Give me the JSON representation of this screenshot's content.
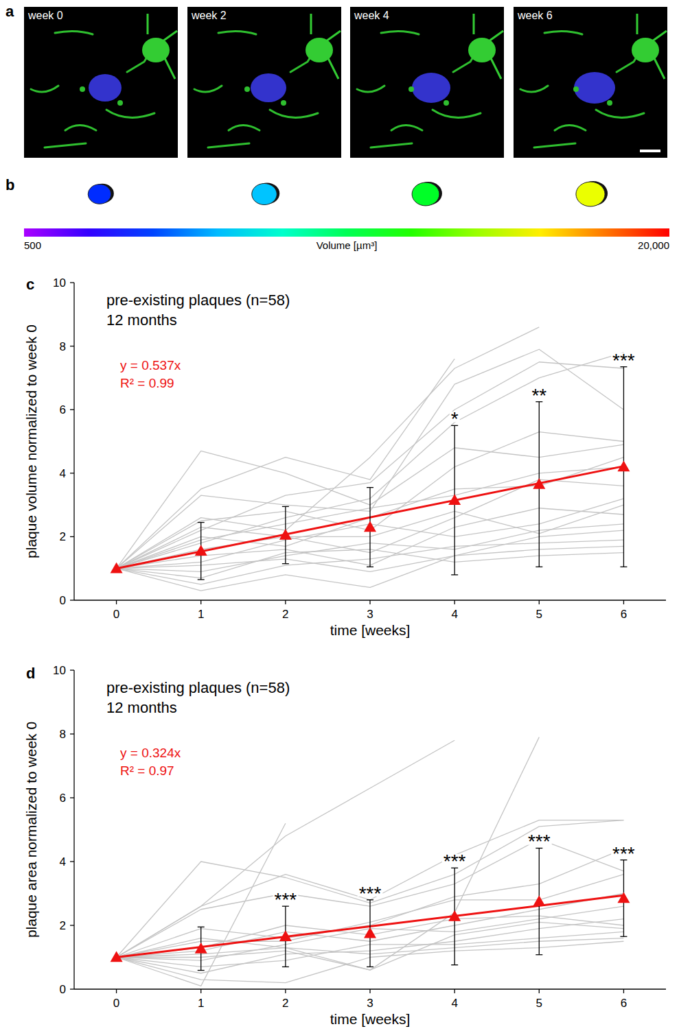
{
  "images": {
    "letter": "a",
    "labels": [
      "week 0",
      "week 2",
      "week 4",
      "week 6"
    ]
  },
  "colorbar": {
    "letter": "b",
    "label": "Volume [µm³]",
    "range": [
      500,
      20000
    ],
    "ticks": [
      500,
      {
        "value": 20000,
        "label": "20,000"
      }
    ],
    "volumes": [
      4000,
      6500,
      11000,
      15500
    ]
  },
  "chart_data": [
    {
      "type": "line",
      "panel_label": "c",
      "title": "pre-existing plaques (n=58)",
      "subtitle": "12 months",
      "x_label": "time [weeks]",
      "y_label": "plaque volume normalized to week 0",
      "equation": {
        "text": [
          "y = 0.537x",
          "R² = 0.99"
        ],
        "color": "#ee1111"
      },
      "annotations": [
        {
          "x": 4,
          "text": "*"
        },
        {
          "x": 5,
          "text": "**"
        },
        {
          "x": 6,
          "text": "***"
        }
      ],
      "x": [
        0,
        1,
        2,
        3,
        4,
        5,
        6
      ],
      "xlim": [
        -0.5,
        6.5
      ],
      "xticks": [
        0,
        1,
        2,
        3,
        4,
        5,
        6
      ],
      "ylim": [
        0,
        10
      ],
      "yticks": [
        0,
        2,
        4,
        6,
        8,
        10
      ],
      "grid": false,
      "series": [
        {
          "color": "#c4c4c4",
          "values": [
            1,
            4.7,
            4.0,
            3.0,
            4.8,
            4.5,
            4.9
          ]
        },
        {
          "color": "#c4c4c4",
          "values": [
            1,
            3.5,
            4.5,
            3.8,
            7.6,
            null,
            null
          ]
        },
        {
          "color": "#c4c4c4",
          "values": [
            1,
            2.6,
            2.2,
            4.5,
            7.3,
            8.6,
            null
          ]
        },
        {
          "color": "#c4c4c4",
          "values": [
            1,
            3.3,
            3.0,
            2.8,
            6.8,
            7.9,
            6.0
          ]
        },
        {
          "color": "#c4c4c4",
          "values": [
            1,
            2.2,
            3.3,
            3.7,
            6.0,
            7.5,
            7.3
          ]
        },
        {
          "color": "#c4c4c4",
          "values": [
            1,
            1.8,
            2.6,
            3.2,
            5.6,
            7.0,
            7.8
          ]
        },
        {
          "color": "#c4c4c4",
          "values": [
            1,
            2.5,
            2.8,
            2.2,
            4.2,
            5.3,
            5.0
          ]
        },
        {
          "color": "#c4c4c4",
          "values": [
            1,
            2.0,
            1.7,
            2.6,
            3.5,
            3.6,
            4.5
          ]
        },
        {
          "color": "#c4c4c4",
          "values": [
            1,
            1.6,
            2.0,
            1.5,
            2.6,
            3.8,
            3.6
          ]
        },
        {
          "color": "#c4c4c4",
          "values": [
            1,
            1.2,
            1.9,
            2.4,
            2.0,
            2.4,
            3.2
          ]
        },
        {
          "color": "#c4c4c4",
          "values": [
            1,
            1.4,
            1.6,
            1.1,
            2.3,
            2.9,
            2.7
          ]
        },
        {
          "color": "#c4c4c4",
          "values": [
            1,
            0.9,
            1.4,
            1.8,
            1.6,
            2.2,
            2.4
          ]
        },
        {
          "color": "#c4c4c4",
          "values": [
            1,
            0.3,
            0.8,
            0.4,
            1.4,
            2.0,
            2.2
          ]
        },
        {
          "color": "#c4c4c4",
          "values": [
            1,
            0.5,
            1.1,
            1.3,
            1.7,
            1.8,
            1.9
          ]
        },
        {
          "color": "#c4c4c4",
          "values": [
            1,
            1.1,
            1.3,
            0.9,
            1.4,
            1.6,
            1.7
          ]
        },
        {
          "color": "#c4c4c4",
          "values": [
            1,
            0.7,
            1.5,
            1.6,
            1.2,
            1.4,
            1.5
          ]
        },
        {
          "color": "#c4c4c4",
          "values": [
            1,
            2.3,
            2.0,
            2.0,
            2.8,
            2.1,
            3.0
          ]
        },
        {
          "color": "#c4c4c4",
          "values": [
            1,
            1.9,
            2.4,
            2.9,
            3.3,
            4.0,
            4.2
          ]
        },
        {
          "type": "line",
          "color": "#ee1111",
          "x": [
            0,
            6
          ],
          "values": [
            1,
            4.22
          ]
        },
        {
          "type": "scatter",
          "marker": "triangle",
          "color": "#ee1111",
          "values": [
            1,
            1.55,
            2.05,
            2.3,
            3.15,
            3.65,
            4.2
          ],
          "errors": [
            null,
            0.9,
            0.9,
            1.25,
            2.35,
            2.6,
            3.15
          ]
        }
      ]
    },
    {
      "type": "line",
      "panel_label": "d",
      "title": "pre-existing plaques (n=58)",
      "subtitle": "12 months",
      "x_label": "time [weeks]",
      "y_label": "plaque area normalized to week 0",
      "equation": {
        "text": [
          "y = 0.324x",
          "R² = 0.97"
        ],
        "color": "#ee1111"
      },
      "annotations": [
        {
          "x": 2,
          "text": "***"
        },
        {
          "x": 3,
          "text": "***"
        },
        {
          "x": 4,
          "text": "***"
        },
        {
          "x": 5,
          "text": "***"
        },
        {
          "x": 6,
          "text": "***"
        }
      ],
      "x": [
        0,
        1,
        2,
        3,
        4,
        5,
        6
      ],
      "xlim": [
        -0.5,
        6.5
      ],
      "xticks": [
        0,
        1,
        2,
        3,
        4,
        5,
        6
      ],
      "ylim": [
        0,
        10
      ],
      "yticks": [
        0,
        2,
        4,
        6,
        8,
        10
      ],
      "grid": false,
      "series": [
        {
          "color": "#c4c4c4",
          "values": [
            1,
            0.1,
            5.2,
            null,
            null,
            null,
            null
          ]
        },
        {
          "color": "#c4c4c4",
          "values": [
            1,
            2.6,
            4.8,
            6.3,
            7.8,
            null,
            null
          ]
        },
        {
          "color": "#c4c4c4",
          "values": [
            1,
            2.6,
            3.6,
            2.8,
            4.2,
            5.3,
            5.3
          ]
        },
        {
          "color": "#c4c4c4",
          "values": [
            1,
            4.0,
            3.5,
            2.7,
            3.6,
            5.1,
            5.3
          ]
        },
        {
          "color": "#c4c4c4",
          "values": [
            1,
            2.5,
            3.0,
            2.6,
            3.3,
            4.7,
            3.7
          ]
        },
        {
          "color": "#c4c4c4",
          "values": [
            1,
            1.0,
            1.2,
            0.6,
            2.4,
            7.9,
            null
          ]
        },
        {
          "color": "#c4c4c4",
          "values": [
            1,
            1.9,
            1.6,
            2.0,
            2.9,
            3.3,
            4.4
          ]
        },
        {
          "color": "#c4c4c4",
          "values": [
            1,
            1.5,
            1.5,
            2.1,
            2.8,
            2.8,
            3.6
          ]
        },
        {
          "color": "#c4c4c4",
          "values": [
            1,
            1.2,
            1.8,
            1.5,
            2.0,
            2.5,
            3.0
          ]
        },
        {
          "color": "#c4c4c4",
          "values": [
            1,
            0.9,
            1.4,
            1.9,
            1.8,
            2.2,
            2.6
          ]
        },
        {
          "color": "#c4c4c4",
          "values": [
            1,
            0.5,
            1.1,
            1.2,
            1.5,
            1.9,
            2.2
          ]
        },
        {
          "color": "#c4c4c4",
          "values": [
            1,
            0.7,
            0.9,
            1.4,
            1.4,
            1.6,
            1.8
          ]
        },
        {
          "color": "#c4c4c4",
          "values": [
            1,
            1.1,
            1.3,
            1.1,
            1.3,
            1.5,
            1.6
          ]
        },
        {
          "color": "#c4c4c4",
          "values": [
            1,
            0.3,
            0.2,
            1.0,
            1.2,
            1.3,
            1.5
          ]
        },
        {
          "color": "#c4c4c4",
          "values": [
            1,
            1.3,
            2.0,
            1.7,
            2.2,
            2.3,
            2.0
          ]
        },
        {
          "color": "#c4c4c4",
          "values": [
            1,
            1.6,
            1.3,
            0.6,
            1.7,
            2.1,
            1.9
          ]
        },
        {
          "type": "line",
          "color": "#ee1111",
          "x": [
            0,
            6
          ],
          "values": [
            1,
            2.94
          ]
        },
        {
          "type": "scatter",
          "marker": "triangle",
          "color": "#ee1111",
          "values": [
            1,
            1.27,
            1.65,
            1.75,
            2.28,
            2.75,
            2.85
          ],
          "errors": [
            null,
            0.68,
            0.95,
            1.05,
            1.52,
            1.67,
            1.2
          ]
        }
      ]
    }
  ]
}
